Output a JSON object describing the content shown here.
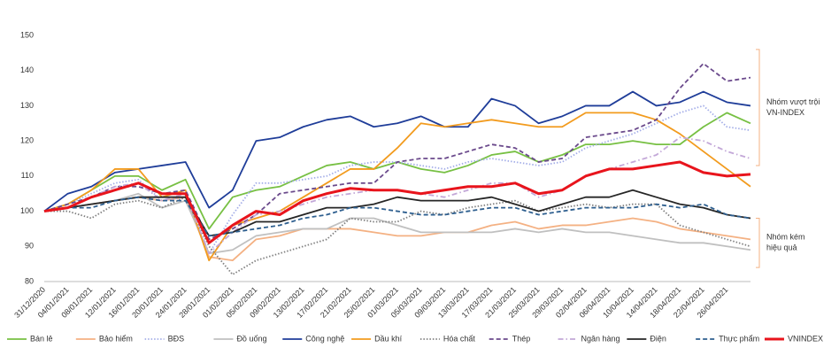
{
  "chart_data": {
    "type": "line",
    "categories": [
      "31/12/2020",
      "04/01/2021",
      "08/01/2021",
      "12/01/2021",
      "16/01/2021",
      "20/01/2021",
      "24/01/2021",
      "28/01/2021",
      "01/02/2021",
      "05/02/2021",
      "09/02/2021",
      "13/02/2021",
      "17/02/2021",
      "21/02/2021",
      "25/02/2021",
      "01/03/2021",
      "05/03/2021",
      "09/03/2021",
      "13/03/2021",
      "17/03/2021",
      "21/03/2021",
      "25/03/2021",
      "29/03/2021",
      "02/04/2021",
      "06/04/2021",
      "10/04/2021",
      "14/04/2021",
      "18/04/2021",
      "22/04/2021",
      "26/04/2021",
      null
    ],
    "ylim": [
      80,
      150
    ],
    "yticks": [
      80,
      90,
      100,
      110,
      120,
      130,
      140,
      150
    ],
    "annotations": [
      {
        "lines": [
          "Nhóm vượt trội",
          "VN-INDEX"
        ],
        "range": [
          146,
          113
        ]
      },
      {
        "lines": [
          "Nhóm kém",
          "hiệu quả"
        ],
        "range": [
          98,
          84
        ]
      }
    ],
    "series": [
      {
        "name": "Bán lẻ",
        "color": "#77c043",
        "style": "solid",
        "values": [
          100,
          102,
          106,
          110,
          110,
          106,
          109,
          95,
          104,
          106,
          107,
          110,
          113,
          114,
          112,
          114,
          112,
          111,
          113,
          116,
          117,
          114,
          116,
          119,
          119,
          120,
          119,
          119,
          124,
          128,
          125
        ]
      },
      {
        "name": "Bảo hiểm",
        "color": "#f4b183",
        "style": "solid",
        "values": [
          100,
          101,
          102,
          103,
          104,
          103,
          104,
          87,
          86,
          92,
          93,
          95,
          95,
          95,
          94,
          93,
          93,
          94,
          94,
          96,
          97,
          95,
          96,
          96,
          97,
          98,
          97,
          95,
          94,
          93,
          92
        ]
      },
      {
        "name": "BĐS",
        "color": "#a4aee8",
        "style": "dotted",
        "values": [
          100,
          102,
          105,
          108,
          109,
          103,
          104,
          88,
          99,
          108,
          108,
          109,
          110,
          113,
          114,
          114,
          113,
          112,
          114,
          115,
          114,
          113,
          114,
          118,
          120,
          122,
          125,
          128,
          130,
          124,
          123
        ]
      },
      {
        "name": "Đồ uống",
        "color": "#c0c0c0",
        "style": "solid",
        "values": [
          100,
          101,
          102,
          103,
          105,
          101,
          103,
          88,
          89,
          93,
          94,
          95,
          95,
          98,
          98,
          96,
          94,
          94,
          94,
          94,
          95,
          94,
          95,
          94,
          94,
          93,
          92,
          91,
          91,
          90,
          89
        ]
      },
      {
        "name": "Công nghệ",
        "color": "#1f3d99",
        "style": "solid",
        "values": [
          100,
          105,
          107,
          111,
          112,
          113,
          114,
          101,
          106,
          120,
          121,
          124,
          126,
          127,
          124,
          125,
          127,
          124,
          124,
          132,
          130,
          125,
          127,
          130,
          130,
          134,
          130,
          131,
          134,
          131,
          130
        ]
      },
      {
        "name": "Dầu khí",
        "color": "#f29b1e",
        "style": "solid",
        "values": [
          100,
          102,
          106,
          112,
          112,
          104,
          106,
          86,
          96,
          98,
          100,
          104,
          108,
          112,
          112,
          118,
          125,
          124,
          125,
          126,
          125,
          124,
          124,
          128,
          128,
          128,
          126,
          122,
          117,
          112,
          107
        ]
      },
      {
        "name": "Hóa chất",
        "color": "#808080",
        "style": "dotted",
        "values": [
          100,
          100,
          98,
          102,
          103,
          101,
          104,
          90,
          82,
          86,
          88,
          90,
          92,
          98,
          97,
          97,
          100,
          99,
          101,
          102,
          103,
          100,
          101,
          102,
          101,
          102,
          102,
          96,
          94,
          92,
          90
        ]
      },
      {
        "name": "Thép",
        "color": "#6b4a8c",
        "style": "dashed",
        "values": [
          100,
          102,
          104,
          107,
          107,
          105,
          106,
          92,
          95,
          99,
          105,
          106,
          107,
          108,
          108,
          114,
          115,
          115,
          117,
          119,
          118,
          114,
          115,
          121,
          122,
          123,
          126,
          135,
          142,
          137,
          138
        ]
      },
      {
        "name": "Ngân hàng",
        "color": "#c3a8d8",
        "style": "dashdot",
        "values": [
          100,
          101,
          104,
          107,
          108,
          103,
          105,
          88,
          94,
          99,
          100,
          102,
          104,
          105,
          106,
          106,
          105,
          104,
          106,
          108,
          108,
          104,
          106,
          110,
          112,
          114,
          116,
          121,
          120,
          117,
          115
        ]
      },
      {
        "name": "Điện",
        "color": "#262626",
        "style": "solid",
        "values": [
          100,
          101,
          102,
          103,
          104,
          104,
          104,
          93,
          94,
          97,
          97,
          99,
          101,
          101,
          102,
          104,
          103,
          103,
          103,
          104,
          102,
          100,
          102,
          104,
          104,
          106,
          104,
          102,
          101,
          99,
          98
        ]
      },
      {
        "name": "Thực phẩm",
        "color": "#2e5f8f",
        "style": "dashed",
        "values": [
          100,
          101,
          101,
          103,
          104,
          103,
          103,
          93,
          94,
          95,
          96,
          98,
          99,
          101,
          101,
          100,
          99,
          99,
          100,
          101,
          101,
          99,
          100,
          101,
          101,
          101,
          102,
          101,
          102,
          99,
          98
        ]
      },
      {
        "name": "VNINDEX",
        "color": "#e8141c",
        "style": "thick",
        "values": [
          100,
          101,
          104,
          106,
          108,
          105,
          105,
          91,
          96,
          100,
          99,
          103,
          105,
          106.5,
          106,
          106,
          105,
          106,
          107,
          107,
          108,
          105,
          106,
          110,
          112,
          112,
          113,
          114,
          111,
          110,
          110.5
        ]
      }
    ]
  }
}
